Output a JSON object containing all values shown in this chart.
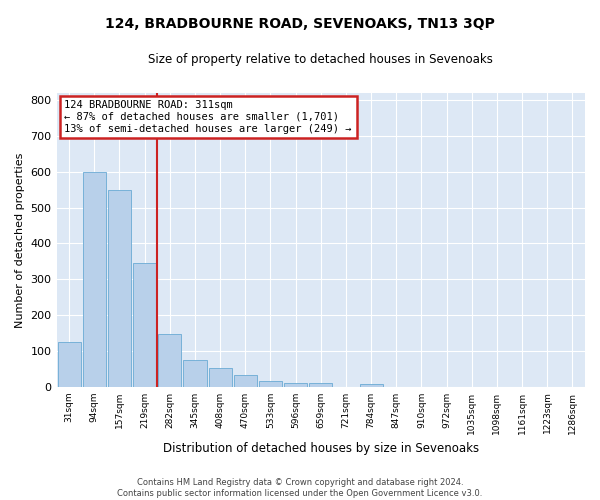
{
  "title": "124, BRADBOURNE ROAD, SEVENOAKS, TN13 3QP",
  "subtitle": "Size of property relative to detached houses in Sevenoaks",
  "xlabel": "Distribution of detached houses by size in Sevenoaks",
  "ylabel": "Number of detached properties",
  "categories": [
    "31sqm",
    "94sqm",
    "157sqm",
    "219sqm",
    "282sqm",
    "345sqm",
    "408sqm",
    "470sqm",
    "533sqm",
    "596sqm",
    "659sqm",
    "721sqm",
    "784sqm",
    "847sqm",
    "910sqm",
    "972sqm",
    "1035sqm",
    "1098sqm",
    "1161sqm",
    "1223sqm",
    "1286sqm"
  ],
  "values": [
    125,
    600,
    550,
    345,
    148,
    75,
    53,
    33,
    16,
    10,
    10,
    0,
    7,
    0,
    0,
    0,
    0,
    0,
    0,
    0,
    0
  ],
  "bar_color": "#b8d0ea",
  "bar_edge_color": "#6aaad4",
  "annotation_box_text": "124 BRADBOURNE ROAD: 311sqm\n← 87% of detached houses are smaller (1,701)\n13% of semi-detached houses are larger (249) →",
  "annotation_box_color": "#cc2222",
  "fig_bg_color": "#ffffff",
  "plot_bg_color": "#dde8f5",
  "grid_color": "#ffffff",
  "ylim": [
    0,
    820
  ],
  "yticks": [
    0,
    100,
    200,
    300,
    400,
    500,
    600,
    700,
    800
  ],
  "vline_position": 3.5,
  "footer_line1": "Contains HM Land Registry data © Crown copyright and database right 2024.",
  "footer_line2": "Contains public sector information licensed under the Open Government Licence v3.0."
}
